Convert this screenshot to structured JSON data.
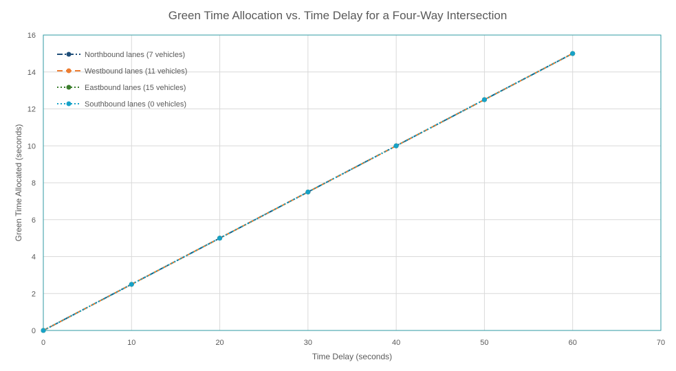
{
  "chart_data": {
    "type": "line",
    "title": "Green Time Allocation vs. Time Delay for a Four-Way Intersection",
    "xlabel": "Time Delay (seconds)",
    "ylabel": "Green Time Allocated (seconds)",
    "xlim": [
      0,
      70
    ],
    "ylim": [
      0,
      16
    ],
    "xticks": [
      "0",
      "10",
      "20",
      "30",
      "40",
      "50",
      "60",
      "70"
    ],
    "yticks": [
      "0",
      "2",
      "4",
      "6",
      "8",
      "10",
      "12",
      "14",
      "16"
    ],
    "grid": true,
    "legend_position": "top-left",
    "x": [
      0,
      10,
      20,
      30,
      40,
      50,
      60
    ],
    "series": [
      {
        "name": "Northbound lanes (7 vehicles)",
        "values": [
          0,
          2.5,
          5,
          7.5,
          10,
          12.5,
          15
        ],
        "color": "#1f4e79",
        "style": "dash-dot"
      },
      {
        "name": "Westbound lanes (11 vehicles)",
        "values": [
          0,
          2.5,
          5,
          7.5,
          10,
          12.5,
          15
        ],
        "color": "#ed7d31",
        "style": "dash"
      },
      {
        "name": "Eastbound lanes (15 vehicles)",
        "values": [
          0,
          2.5,
          5,
          7.5,
          10,
          12.5,
          15
        ],
        "color": "#3a7d2c",
        "style": "dot"
      },
      {
        "name": "Southbound lanes (0 vehicles)",
        "values": [
          0,
          2.5,
          5,
          7.5,
          10,
          12.5,
          15
        ],
        "color": "#17a2c8",
        "style": "dot"
      }
    ]
  }
}
